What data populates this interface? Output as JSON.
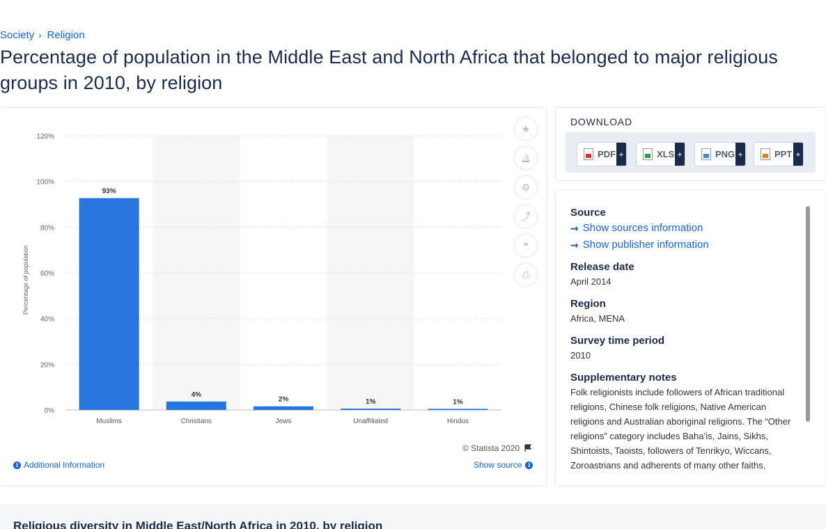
{
  "breadcrumb": {
    "items": [
      "Society",
      "Religion"
    ],
    "separator": "›"
  },
  "title": "Percentage of population in the Middle East and North Africa that belonged to major religious groups in 2010, by religion",
  "chart_data": {
    "type": "bar",
    "categories": [
      "Muslims",
      "Christians",
      "Jews",
      "Unaffiliated",
      "Hindus"
    ],
    "values": [
      92.7,
      3.7,
      1.6,
      0.6,
      0.5
    ],
    "data_labels": [
      "93%",
      "4%",
      "2%",
      "1%",
      "1%"
    ],
    "ylabel": "Percentage of population",
    "xlabel": "",
    "yticks": [
      "0%",
      "20%",
      "40%",
      "60%",
      "80%",
      "100%",
      "120%"
    ],
    "ylim": [
      0,
      120
    ],
    "grid": true,
    "bar_color": "#2876dd"
  },
  "tools": {
    "icons": [
      "star-icon",
      "bell-icon",
      "gear-icon",
      "share-icon",
      "quote-icon",
      "print-icon"
    ],
    "glyphs": [
      "★",
      "🔔",
      "⚙",
      "⤴",
      "❝",
      "⎙"
    ]
  },
  "credit": "© Statista 2020",
  "additional_info": "Additional Information",
  "show_source": "Show source",
  "download": {
    "title": "DOWNLOAD",
    "buttons": [
      {
        "label": "PDF",
        "plus": "+"
      },
      {
        "label": "XLS",
        "plus": "+"
      },
      {
        "label": "PNG",
        "plus": "+"
      },
      {
        "label": "PPT",
        "plus": "+"
      }
    ]
  },
  "source_panel": {
    "source_heading": "Source",
    "show_sources": "Show sources information",
    "show_publisher": "Show publisher information",
    "release_date_heading": "Release date",
    "release_date": "April 2014",
    "region_heading": "Region",
    "region": "Africa, MENA",
    "survey_heading": "Survey time period",
    "survey": "2010",
    "notes_heading": "Supplementary notes",
    "notes": "Folk religionists include followers of African traditional religions, Chinese folk religions, Native American religions and Australian aboriginal religions. The “Other religions” category includes Baha’is, Jains, Sikhs, Shintoists, Taoists, followers of Tenrikyo, Wiccans, Zoroastrians and adherents of many other faiths."
  },
  "bottom_title": "Religious diversity in Middle East/North Africa in 2010, by religion"
}
